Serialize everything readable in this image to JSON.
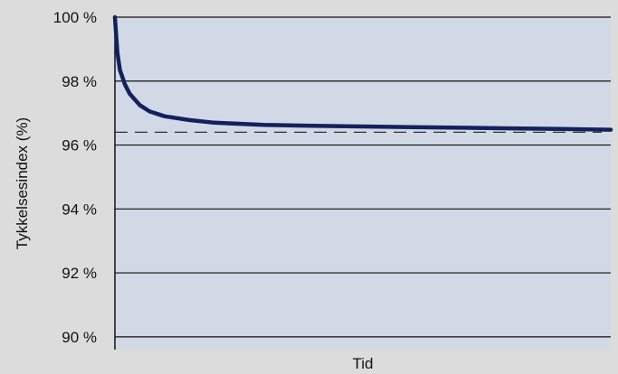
{
  "chart_data": {
    "type": "line",
    "title": "",
    "xlabel": "Tid",
    "ylabel": "Tykkelsesindex (%)",
    "ylim": [
      89.6,
      100
    ],
    "y_ticks": [
      100,
      98,
      96,
      94,
      92,
      90
    ],
    "y_tick_labels": [
      "100 %",
      "98 %",
      "96 %",
      "94 %",
      "92 %",
      "90 %"
    ],
    "grid": true,
    "x_ticks_shown": false,
    "series": [
      {
        "color": "#14215e",
        "x": [
          0,
          0.005,
          0.01,
          0.02,
          0.03,
          0.05,
          0.07,
          0.1,
          0.15,
          0.2,
          0.3,
          0.4,
          0.5,
          0.6,
          0.7,
          0.8,
          0.9,
          1.0
        ],
        "values": [
          100,
          98.9,
          98.35,
          97.9,
          97.6,
          97.25,
          97.05,
          96.9,
          96.78,
          96.7,
          96.63,
          96.6,
          96.58,
          96.56,
          96.54,
          96.52,
          96.5,
          96.48
        ]
      }
    ],
    "reference_lines": [
      {
        "y": 96.4,
        "style": "dashed",
        "color": "#333333"
      }
    ]
  },
  "colors": {
    "plot_background": "#d0d9e5",
    "page_background": "#dcdcdc",
    "series": "#14215e"
  }
}
